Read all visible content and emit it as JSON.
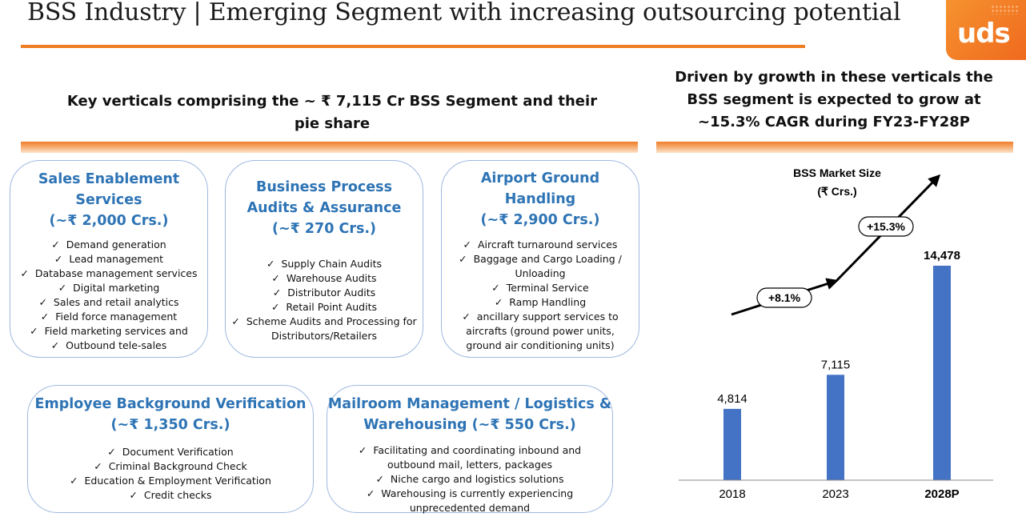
{
  "header": {
    "title": "BSS Industry | Emerging Segment with increasing outsourcing potential",
    "logo_text": "uds"
  },
  "left_heading": {
    "line1": "Key verticals comprising the ~ ₹ 7,115 Cr BSS Segment and their",
    "line2": "pie share"
  },
  "right_heading": {
    "line1": "Driven by growth in these verticals the",
    "line2": "BSS segment is expected to grow at",
    "line3": "~15.3% CAGR during FY23-FY28P"
  },
  "cards": [
    {
      "title_lines": [
        "Sales Enablement",
        "Services",
        "(~₹ 2,000 Crs.)"
      ],
      "items": [
        "Demand generation",
        "Lead management",
        "Database management services",
        "Digital marketing",
        "Sales and retail analytics",
        "Field force management",
        "Field marketing services and",
        "Outbound tele-sales"
      ]
    },
    {
      "title_lines": [
        "Business Process",
        "Audits & Assurance",
        "(~₹ 270 Crs.)"
      ],
      "items": [
        "Supply Chain Audits",
        "Warehouse Audits",
        "Distributor Audits",
        "Retail Point  Audits",
        "Scheme Audits and Processing for",
        "Distributors/Retailers"
      ]
    },
    {
      "title_lines": [
        "Airport Ground",
        "Handling",
        "(~₹ 2,900 Crs.)"
      ],
      "items": [
        "Aircraft turnaround services",
        "Baggage and Cargo Loading /",
        "Unloading",
        "Terminal Service",
        "Ramp Handling",
        "ancillary support services to",
        "aircrafts (ground power units,",
        "ground air conditioning units)"
      ]
    },
    {
      "title_lines": [
        "Employee Background Verification",
        "(~₹ 1,350 Crs.)"
      ],
      "items": [
        "Document Verification",
        "Criminal Background Check",
        "Education & Employment Verification",
        "Credit checks"
      ]
    },
    {
      "title_lines": [
        "Mailroom Management / Logistics &",
        "Warehousing (~₹ 550 Crs.)"
      ],
      "items": [
        "Facilitating and coordinating inbound and",
        "outbound mail, letters, packages",
        "Niche cargo and logistics solutions",
        "Warehousing is currently experiencing",
        "unprecedented demand"
      ]
    }
  ],
  "chart_data": {
    "type": "bar",
    "title_lines": [
      "BSS Market Size",
      "(₹ Crs.)"
    ],
    "categories": [
      "2018",
      "2023",
      "2028P"
    ],
    "values": [
      4814,
      7115,
      14478
    ],
    "value_labels": [
      "4,814",
      "7,115",
      "14,478"
    ],
    "bold_category": "2028P",
    "ylim": [
      0,
      14478
    ],
    "bar_color": "#4472c4",
    "growth_labels": [
      "+8.1%",
      "+15.3%"
    ]
  }
}
